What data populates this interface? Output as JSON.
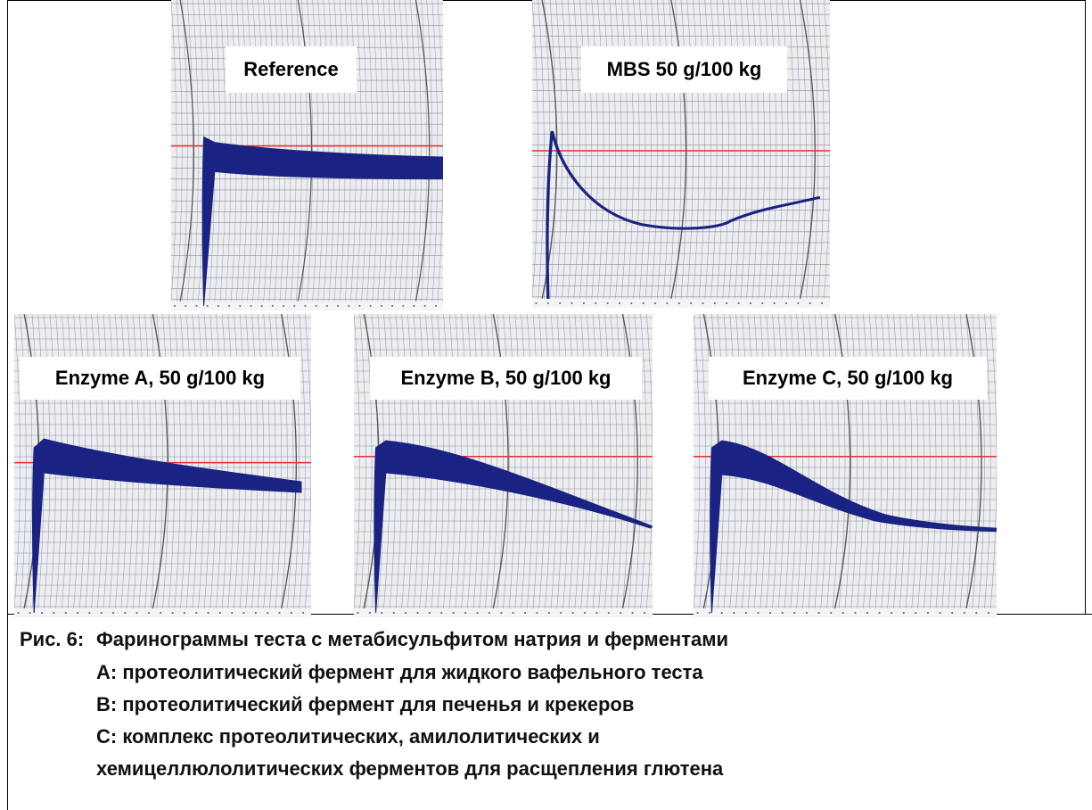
{
  "figure": {
    "panels": [
      {
        "label": "Reference"
      },
      {
        "label": "MBS 50 g/100 kg"
      },
      {
        "label": "Enzyme A, 50 g/100 kg"
      },
      {
        "label": "Enzyme B, 50 g/100 kg"
      },
      {
        "label": "Enzyme C, 50 g/100 kg"
      }
    ]
  },
  "caption": {
    "number": "Рис. 6:",
    "lines": [
      "Фаринограммы теста с метабисульфитом натрия и ферментами",
      "А: протеолитический фермент для жидкого вафельного теста",
      "B: протеолитический фермент для печенья и крекеров",
      "C: комплекс протеолитических, амилолитических и",
      "хемицеллюлолитических ферментов для расщепления глютена"
    ]
  }
}
